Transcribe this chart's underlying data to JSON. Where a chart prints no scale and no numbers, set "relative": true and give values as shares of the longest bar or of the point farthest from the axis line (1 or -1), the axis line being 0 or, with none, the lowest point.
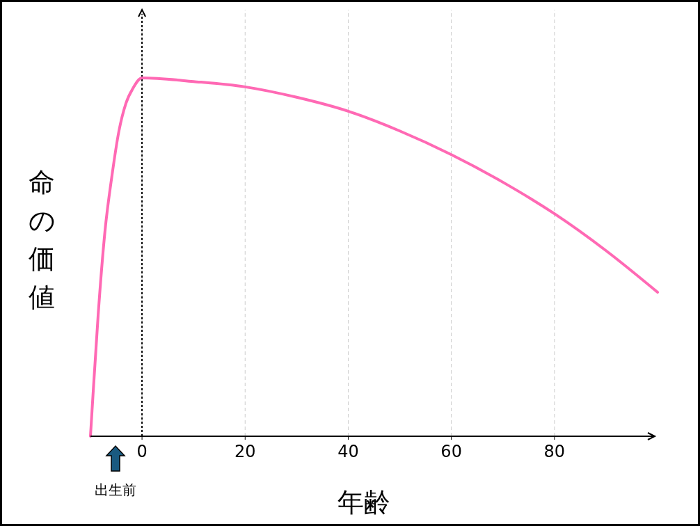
{
  "chart_data": {
    "type": "line",
    "relative": true,
    "xlabel": "年齢",
    "ylabel": "命の価値",
    "x": [
      -10,
      -9.7,
      -8.5,
      -7.2,
      -5.8,
      -4.5,
      -3.1,
      -1.8,
      0,
      10,
      20,
      30,
      40,
      50,
      60,
      70,
      80,
      90,
      100
    ],
    "series": [
      {
        "color": "#ff69b4",
        "values": [
          0,
          0.07,
          0.34,
          0.57,
          0.73,
          0.85,
          0.93,
          0.97,
          1,
          0.99,
          0.975,
          0.946,
          0.907,
          0.852,
          0.786,
          0.709,
          0.621,
          0.518,
          0.402
        ]
      }
    ],
    "xlim": [
      -10,
      100
    ],
    "xticks": [
      0,
      20,
      40,
      60,
      80
    ],
    "grid": "x",
    "line_style": "solid",
    "marker": "none",
    "ref_lines": [
      {
        "axis": "x",
        "value": 0,
        "color": "#000000",
        "line_style": "dotted"
      }
    ],
    "annotations": [
      "出生前"
    ]
  }
}
